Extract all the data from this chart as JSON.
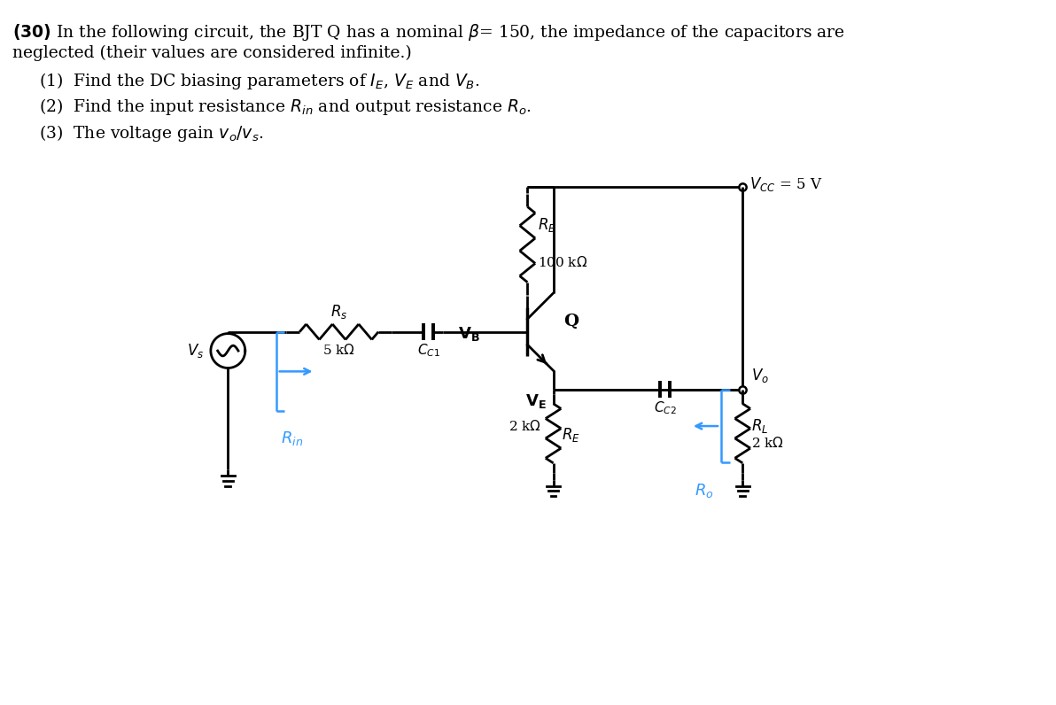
{
  "bg_color": "#ffffff",
  "line_color": "#000000",
  "blue_color": "#3399ff",
  "text_color": "#000000",
  "lw": 2.0,
  "fs_main": 13.5,
  "fs_label": 12,
  "fs_small": 11
}
